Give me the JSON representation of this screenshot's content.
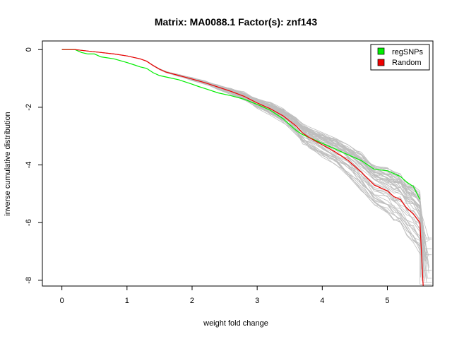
{
  "chart_data": {
    "type": "line",
    "title": "Matrix: MA0088.1 Factor(s): znf143",
    "xlabel": "weight fold change",
    "ylabel": "inverse cumulative distribution",
    "xlim": [
      -0.3,
      5.7
    ],
    "ylim": [
      -8.2,
      0.3
    ],
    "x_ticks": [
      "0",
      "1",
      "2",
      "3",
      "4",
      "5"
    ],
    "y_ticks": [
      "0",
      "-2",
      "-4",
      "-6",
      "-8"
    ],
    "grid": false,
    "legend": {
      "position": "top-right"
    },
    "series": [
      {
        "name": "regSNPs",
        "color": "#00ee00",
        "x": [
          0,
          0.2,
          0.3,
          0.4,
          0.5,
          0.6,
          0.8,
          1.0,
          1.1,
          1.2,
          1.3,
          1.4,
          1.5,
          1.6,
          1.8,
          2.0,
          2.1,
          2.2,
          2.4,
          2.6,
          2.8,
          3.0,
          3.2,
          3.4,
          3.6,
          3.7,
          3.8,
          4.0,
          4.2,
          4.3,
          4.4,
          4.6,
          4.8,
          5.0,
          5.1,
          5.2,
          5.3,
          5.4,
          5.5
        ],
        "y": [
          0,
          0,
          -0.1,
          -0.15,
          -0.15,
          -0.25,
          -0.32,
          -0.45,
          -0.52,
          -0.6,
          -0.65,
          -0.8,
          -0.9,
          -0.95,
          -1.05,
          -1.2,
          -1.28,
          -1.35,
          -1.5,
          -1.6,
          -1.72,
          -1.9,
          -2.1,
          -2.4,
          -2.8,
          -2.95,
          -3.05,
          -3.25,
          -3.45,
          -3.55,
          -3.65,
          -3.85,
          -4.15,
          -4.2,
          -4.3,
          -4.4,
          -4.6,
          -4.75,
          -5.2
        ]
      },
      {
        "name": "Random",
        "color": "#ee0000",
        "x": [
          0,
          0.2,
          0.4,
          0.6,
          0.8,
          1.0,
          1.2,
          1.3,
          1.4,
          1.5,
          1.6,
          1.8,
          2.0,
          2.2,
          2.4,
          2.6,
          2.8,
          3.0,
          3.2,
          3.4,
          3.6,
          3.7,
          3.8,
          4.0,
          4.2,
          4.4,
          4.6,
          4.8,
          5.0,
          5.1,
          5.2,
          5.3,
          5.4,
          5.5,
          5.55
        ],
        "y": [
          0,
          0,
          -0.05,
          -0.1,
          -0.15,
          -0.22,
          -0.32,
          -0.4,
          -0.55,
          -0.68,
          -0.78,
          -0.9,
          -1.02,
          -1.15,
          -1.3,
          -1.45,
          -1.62,
          -1.85,
          -2.05,
          -2.3,
          -2.65,
          -2.9,
          -3.05,
          -3.3,
          -3.55,
          -3.85,
          -4.25,
          -4.7,
          -4.9,
          -5.1,
          -5.2,
          -5.5,
          -5.7,
          -6.0,
          -8.2
        ]
      }
    ]
  }
}
